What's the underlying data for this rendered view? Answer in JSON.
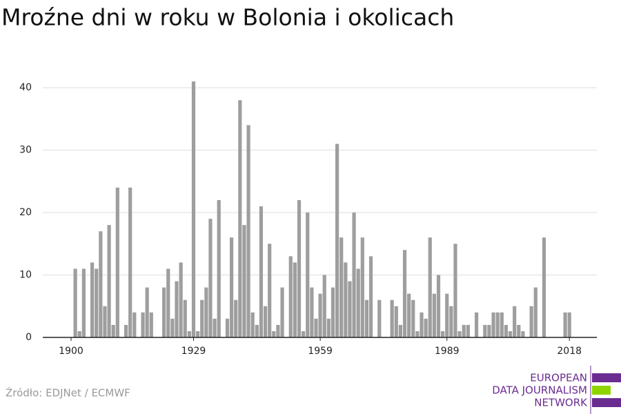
{
  "chart_data": {
    "type": "bar",
    "title": "Mroźne dni w roku w Bolonia i okolicach",
    "x": [
      1901,
      1902,
      1903,
      1904,
      1905,
      1906,
      1907,
      1908,
      1909,
      1910,
      1911,
      1912,
      1913,
      1914,
      1915,
      1916,
      1917,
      1918,
      1919,
      1920,
      1921,
      1922,
      1923,
      1924,
      1925,
      1926,
      1927,
      1928,
      1929,
      1930,
      1931,
      1932,
      1933,
      1934,
      1935,
      1936,
      1937,
      1938,
      1939,
      1940,
      1941,
      1942,
      1943,
      1944,
      1945,
      1946,
      1947,
      1948,
      1949,
      1950,
      1951,
      1952,
      1953,
      1954,
      1955,
      1956,
      1957,
      1958,
      1959,
      1960,
      1961,
      1962,
      1963,
      1964,
      1965,
      1966,
      1967,
      1968,
      1969,
      1970,
      1971,
      1972,
      1973,
      1974,
      1975,
      1976,
      1977,
      1978,
      1979,
      1980,
      1981,
      1982,
      1983,
      1984,
      1985,
      1986,
      1987,
      1988,
      1989,
      1990,
      1991,
      1992,
      1993,
      1994,
      1995,
      1996,
      1997,
      1998,
      1999,
      2000,
      2001,
      2002,
      2003,
      2004,
      2005,
      2006,
      2007,
      2008,
      2009,
      2010,
      2011,
      2012,
      2013,
      2014,
      2015,
      2016,
      2017,
      2018
    ],
    "values": [
      11,
      1,
      11,
      0,
      12,
      11,
      17,
      5,
      18,
      2,
      24,
      0,
      2,
      24,
      4,
      0,
      4,
      8,
      4,
      0,
      0,
      8,
      11,
      3,
      9,
      12,
      6,
      1,
      41,
      1,
      6,
      8,
      19,
      3,
      22,
      0,
      3,
      16,
      6,
      38,
      18,
      34,
      4,
      2,
      21,
      5,
      15,
      1,
      2,
      8,
      0,
      13,
      12,
      22,
      1,
      20,
      8,
      3,
      7,
      10,
      3,
      8,
      31,
      16,
      12,
      9,
      20,
      11,
      16,
      6,
      13,
      0,
      6,
      0,
      0,
      6,
      5,
      2,
      14,
      7,
      6,
      1,
      4,
      3,
      16,
      7,
      10,
      1,
      7,
      5,
      15,
      1,
      2,
      2,
      0,
      4,
      0,
      2,
      2,
      4,
      4,
      4,
      2,
      1,
      5,
      2,
      1,
      0,
      5,
      8,
      0,
      16,
      0,
      0,
      0,
      0,
      4,
      4
    ],
    "color": "#9e9e9e",
    "xlim": [
      1893.3,
      2024.5
    ],
    "xticks": [
      1900,
      1929,
      1959,
      1989,
      2018
    ],
    "ylim": [
      0,
      42
    ],
    "yticks": [
      0,
      10,
      20,
      30,
      40
    ],
    "grid": true,
    "source": "Źródło: EDJNet / ECMWF",
    "logo": [
      "EUROPEAN",
      "DATA JOURNALISM",
      "NETWORK"
    ]
  }
}
